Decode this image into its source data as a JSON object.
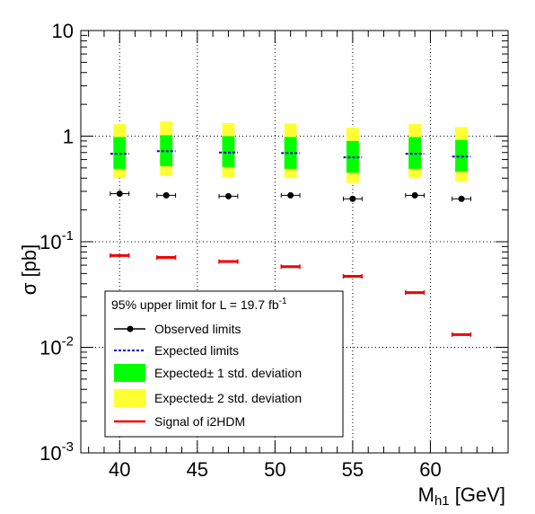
{
  "chart_data": {
    "type": "scatter",
    "title": "",
    "xlabel_main": "M",
    "xlabel_sub": "h1",
    "xlabel_unit": " [GeV]",
    "ylabel": "σ [pb]",
    "xlim": [
      37.5,
      65
    ],
    "ylim": [
      0.001,
      10
    ],
    "yscale": "log",
    "grid": true,
    "x_ticks": [
      40,
      45,
      50,
      55,
      60
    ],
    "y_ticks": [
      {
        "value": 10,
        "label": "10"
      },
      {
        "value": 1,
        "label": "1"
      },
      {
        "value": 0.1,
        "base": "10",
        "exp": "-1"
      },
      {
        "value": 0.01,
        "base": "10",
        "exp": "-2"
      },
      {
        "value": 0.001,
        "base": "10",
        "exp": "-3"
      }
    ],
    "x": [
      40,
      43,
      47,
      51,
      55,
      59,
      62
    ],
    "observed": [
      0.285,
      0.275,
      0.27,
      0.275,
      0.255,
      0.275,
      0.255
    ],
    "expected": [
      0.68,
      0.72,
      0.7,
      0.69,
      0.63,
      0.68,
      0.64
    ],
    "band1_low": [
      0.49,
      0.52,
      0.51,
      0.49,
      0.45,
      0.49,
      0.46
    ],
    "band1_high": [
      0.98,
      1.02,
      1.0,
      0.98,
      0.9,
      0.98,
      0.92
    ],
    "band2_low": [
      0.4,
      0.42,
      0.41,
      0.4,
      0.36,
      0.4,
      0.37
    ],
    "band2_high": [
      1.3,
      1.38,
      1.33,
      1.32,
      1.2,
      1.3,
      1.22
    ],
    "signal": [
      0.074,
      0.071,
      0.065,
      0.058,
      0.047,
      0.033,
      0.0132
    ],
    "colors": {
      "observed": "#000000",
      "expected": "#0000cc",
      "band1": "#00ff00",
      "band2": "#ffff33",
      "signal": "#ee0000",
      "grid": "#000000"
    },
    "legend": {
      "placement": "bottom-left",
      "header_text": "95% upper limit for L = 19.7 fb",
      "header_sup": "-1",
      "entries": [
        {
          "key": "observed",
          "label": "Observed limits"
        },
        {
          "key": "expected",
          "label": "Expected limits"
        },
        {
          "key": "band1",
          "label": "Expected± 1 std. deviation"
        },
        {
          "key": "band2",
          "label": "Expected± 2 std. deviation"
        },
        {
          "key": "signal",
          "label": "Signal of i2HDM"
        }
      ]
    }
  }
}
